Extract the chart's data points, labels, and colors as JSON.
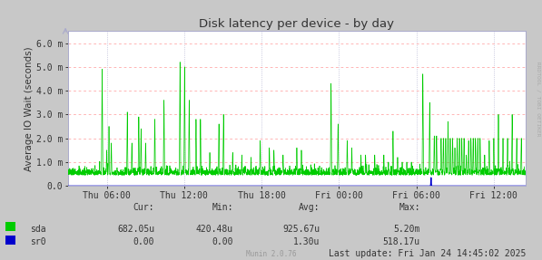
{
  "title": "Disk latency per device - by day",
  "ylabel": "Average IO Wait (seconds)",
  "outer_bg": "#c8c8c8",
  "plot_bg": "#ffffff",
  "grid_color_h": "#ff9999",
  "grid_color_v": "#aaaacc",
  "line_color_sda": "#00cc00",
  "line_color_sr0": "#0000cc",
  "spine_color": "#aaaacc",
  "ylim": [
    0.0,
    0.0065
  ],
  "yticks": [
    0.0,
    0.001,
    0.002,
    0.003,
    0.004,
    0.005,
    0.006
  ],
  "ytick_labels": [
    "0.0",
    "1.0 m",
    "2.0 m",
    "3.0 m",
    "4.0 m",
    "5.0 m",
    "6.0 m"
  ],
  "xtick_labels": [
    "Thu 06:00",
    "Thu 12:00",
    "Thu 18:00",
    "Fri 00:00",
    "Fri 06:00",
    "Fri 12:00"
  ],
  "legend_entries": [
    "sda",
    "sr0"
  ],
  "legend_colors": [
    "#00cc00",
    "#0000cc"
  ],
  "footer_cur_label": "Cur:",
  "footer_min_label": "Min:",
  "footer_avg_label": "Avg:",
  "footer_max_label": "Max:",
  "footer_sda_cur": "682.05u",
  "footer_sda_min": "420.48u",
  "footer_sda_avg": "925.67u",
  "footer_sda_max": "5.20m",
  "footer_sr0_cur": "0.00",
  "footer_sr0_min": "0.00",
  "footer_sr0_avg": "1.30u",
  "footer_sr0_max": "518.17u",
  "last_update": "Last update: Fri Jan 24 14:45:02 2025",
  "munin_version": "Munin 2.0.76",
  "rrdtool_label": "RRDTOOL / TOBI OETIKER",
  "text_color": "#333333",
  "munin_color": "#999999"
}
